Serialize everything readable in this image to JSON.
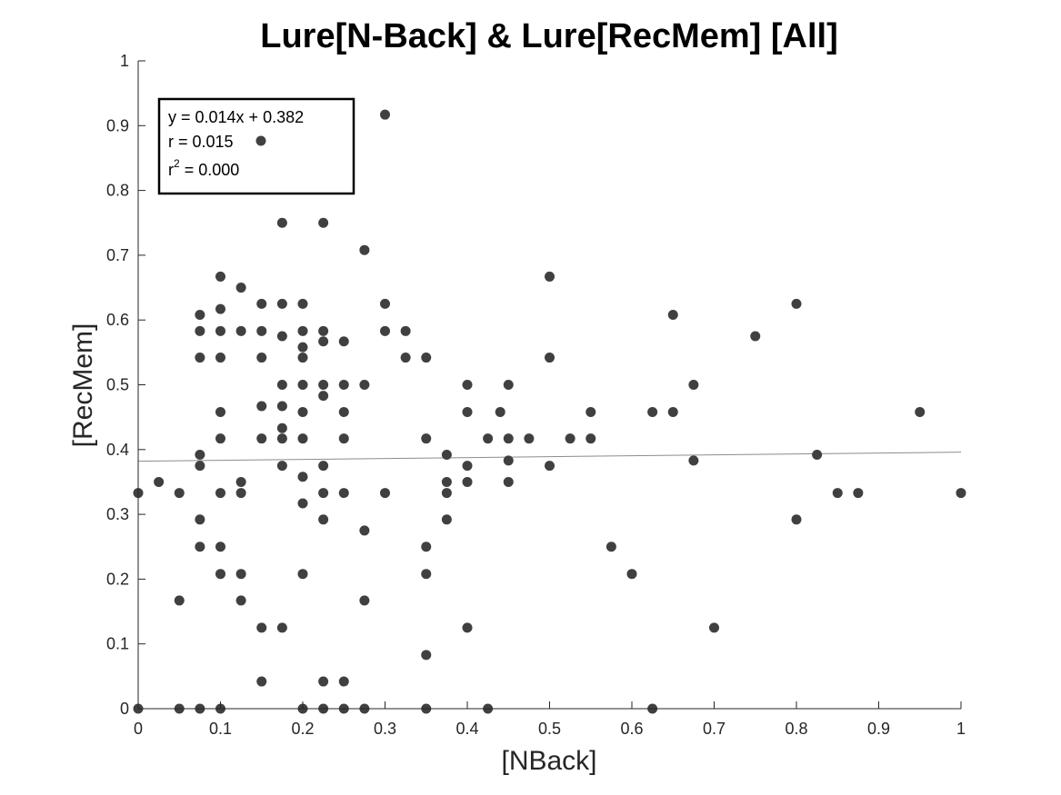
{
  "chart_data": {
    "type": "scatter",
    "title": "Lure[N-Back] & Lure[RecMem] [All]",
    "xlabel": "[NBack]",
    "ylabel": "[RecMem]",
    "xlim": [
      0,
      1
    ],
    "ylim": [
      0,
      1
    ],
    "xticks": [
      "0",
      "0.1",
      "0.2",
      "0.3",
      "0.4",
      "0.5",
      "0.6",
      "0.7",
      "0.8",
      "0.9",
      "1"
    ],
    "yticks": [
      "0",
      "0.1",
      "0.2",
      "0.3",
      "0.4",
      "0.5",
      "0.6",
      "0.7",
      "0.8",
      "0.9",
      "1"
    ],
    "grid": false,
    "point_color": "#404040",
    "fit_line": {
      "slope": 0.014,
      "intercept": 0.382,
      "color": "#8c8c8c"
    },
    "legend": {
      "placement": "top-left",
      "equation": "y = 0.014x + 0.382",
      "r_text": "r = 0.015",
      "r2_prefix": "r",
      "r2_sup": "2",
      "r2_value": " = 0.000"
    },
    "points": [
      [
        0,
        0.333
      ],
      [
        0,
        0
      ],
      [
        0.025,
        0.35
      ],
      [
        0.05,
        0.333
      ],
      [
        0.05,
        0.167
      ],
      [
        0.05,
        0
      ],
      [
        0.075,
        0.608
      ],
      [
        0.075,
        0.583
      ],
      [
        0.075,
        0.542
      ],
      [
        0.075,
        0.392
      ],
      [
        0.075,
        0.375
      ],
      [
        0.075,
        0.292
      ],
      [
        0.075,
        0.25
      ],
      [
        0.075,
        0
      ],
      [
        0.1,
        0.667
      ],
      [
        0.1,
        0.617
      ],
      [
        0.1,
        0.583
      ],
      [
        0.1,
        0.542
      ],
      [
        0.1,
        0.458
      ],
      [
        0.1,
        0.417
      ],
      [
        0.1,
        0.333
      ],
      [
        0.1,
        0.25
      ],
      [
        0.1,
        0.208
      ],
      [
        0.1,
        0
      ],
      [
        0.125,
        0.65
      ],
      [
        0.125,
        0.583
      ],
      [
        0.125,
        0.35
      ],
      [
        0.125,
        0.333
      ],
      [
        0.125,
        0.208
      ],
      [
        0.125,
        0.167
      ],
      [
        0.15,
        0.625
      ],
      [
        0.15,
        0.583
      ],
      [
        0.15,
        0.542
      ],
      [
        0.15,
        0.467
      ],
      [
        0.15,
        0.417
      ],
      [
        0.15,
        0.125
      ],
      [
        0.15,
        0.042
      ],
      [
        0.175,
        0.75
      ],
      [
        0.175,
        0.625
      ],
      [
        0.175,
        0.575
      ],
      [
        0.175,
        0.5
      ],
      [
        0.175,
        0.467
      ],
      [
        0.175,
        0.433
      ],
      [
        0.175,
        0.417
      ],
      [
        0.175,
        0.375
      ],
      [
        0.175,
        0.125
      ],
      [
        0.2,
        0.625
      ],
      [
        0.2,
        0.583
      ],
      [
        0.2,
        0.558
      ],
      [
        0.2,
        0.542
      ],
      [
        0.2,
        0.5
      ],
      [
        0.2,
        0.458
      ],
      [
        0.2,
        0.417
      ],
      [
        0.2,
        0.358
      ],
      [
        0.2,
        0.317
      ],
      [
        0.2,
        0.208
      ],
      [
        0.2,
        0
      ],
      [
        0.225,
        0.75
      ],
      [
        0.225,
        0.583
      ],
      [
        0.225,
        0.567
      ],
      [
        0.225,
        0.5
      ],
      [
        0.225,
        0.483
      ],
      [
        0.225,
        0.375
      ],
      [
        0.225,
        0.333
      ],
      [
        0.225,
        0.292
      ],
      [
        0.225,
        0.042
      ],
      [
        0.225,
        0
      ],
      [
        0.25,
        0.567
      ],
      [
        0.25,
        0.5
      ],
      [
        0.25,
        0.458
      ],
      [
        0.25,
        0.417
      ],
      [
        0.25,
        0.333
      ],
      [
        0.25,
        0.042
      ],
      [
        0.25,
        0
      ],
      [
        0.275,
        0.708
      ],
      [
        0.275,
        0.5
      ],
      [
        0.275,
        0.275
      ],
      [
        0.275,
        0.167
      ],
      [
        0.275,
        0
      ],
      [
        0.3,
        0.917
      ],
      [
        0.3,
        0.625
      ],
      [
        0.3,
        0.583
      ],
      [
        0.3,
        0.333
      ],
      [
        0.325,
        0.583
      ],
      [
        0.325,
        0.542
      ],
      [
        0.35,
        0.542
      ],
      [
        0.35,
        0.417
      ],
      [
        0.35,
        0.25
      ],
      [
        0.35,
        0.208
      ],
      [
        0.35,
        0.083
      ],
      [
        0.35,
        0
      ],
      [
        0.375,
        0.392
      ],
      [
        0.375,
        0.35
      ],
      [
        0.375,
        0.333
      ],
      [
        0.375,
        0.292
      ],
      [
        0.4,
        0.5
      ],
      [
        0.4,
        0.458
      ],
      [
        0.4,
        0.375
      ],
      [
        0.4,
        0.35
      ],
      [
        0.4,
        0.125
      ],
      [
        0.425,
        0.417
      ],
      [
        0.425,
        0
      ],
      [
        0.44,
        0.458
      ],
      [
        0.45,
        0.5
      ],
      [
        0.45,
        0.417
      ],
      [
        0.45,
        0.383
      ],
      [
        0.45,
        0.35
      ],
      [
        0.475,
        0.417
      ],
      [
        0.5,
        0.667
      ],
      [
        0.5,
        0.542
      ],
      [
        0.5,
        0.375
      ],
      [
        0.525,
        0.417
      ],
      [
        0.55,
        0.458
      ],
      [
        0.55,
        0.417
      ],
      [
        0.575,
        0.25
      ],
      [
        0.6,
        0.208
      ],
      [
        0.625,
        0.458
      ],
      [
        0.625,
        0
      ],
      [
        0.65,
        0.608
      ],
      [
        0.65,
        0.458
      ],
      [
        0.675,
        0.5
      ],
      [
        0.675,
        0.383
      ],
      [
        0.7,
        0.125
      ],
      [
        0.75,
        0.575
      ],
      [
        0.8,
        0.625
      ],
      [
        0.8,
        0.292
      ],
      [
        0.825,
        0.392
      ],
      [
        0.85,
        0.333
      ],
      [
        0.875,
        0.333
      ],
      [
        0.95,
        0.458
      ],
      [
        1.0,
        0.333
      ]
    ]
  }
}
